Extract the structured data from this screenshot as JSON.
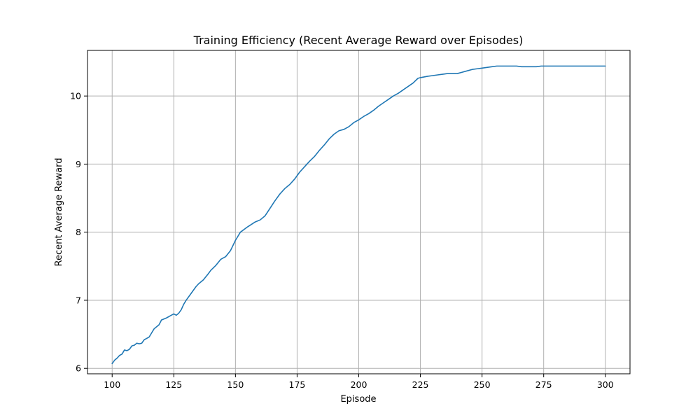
{
  "chart_data": {
    "type": "line",
    "title": "Training Efficiency (Recent Average Reward over Episodes)",
    "xlabel": "Episode",
    "ylabel": "Recent Average Reward",
    "xlim": [
      90,
      310
    ],
    "ylim": [
      5.92,
      10.67
    ],
    "x_ticks": [
      100,
      125,
      150,
      175,
      200,
      225,
      250,
      275,
      300
    ],
    "y_ticks": [
      6,
      7,
      8,
      9,
      10
    ],
    "grid": true,
    "series_color": "#1f77b4",
    "series": [
      {
        "x": [
          100,
          101,
          102,
          103,
          104,
          105,
          106,
          107,
          108,
          109,
          110,
          111,
          112,
          113,
          114,
          115,
          116,
          117,
          118,
          119,
          120,
          122,
          124,
          125,
          126,
          127,
          128,
          129,
          130,
          132,
          134,
          135,
          137,
          139,
          140,
          142,
          144,
          146,
          148,
          150,
          152,
          155,
          158,
          160,
          162,
          164,
          166,
          168,
          170,
          172,
          174,
          176,
          178,
          180,
          182,
          184,
          186,
          188,
          190,
          192,
          194,
          196,
          198,
          200,
          202,
          204,
          206,
          208,
          210,
          212,
          214,
          216,
          218,
          220,
          222,
          224,
          225,
          228,
          230,
          232,
          234,
          236,
          238,
          240,
          242,
          244,
          246,
          248,
          250,
          252,
          254,
          256,
          258,
          260,
          262,
          264,
          266,
          268,
          270,
          272,
          274,
          276,
          278,
          280,
          285,
          290,
          295,
          300
        ],
        "y": [
          6.07,
          6.12,
          6.15,
          6.19,
          6.21,
          6.27,
          6.26,
          6.28,
          6.33,
          6.34,
          6.37,
          6.36,
          6.37,
          6.42,
          6.44,
          6.46,
          6.52,
          6.58,
          6.61,
          6.64,
          6.71,
          6.74,
          6.78,
          6.8,
          6.78,
          6.81,
          6.86,
          6.94,
          7.0,
          7.1,
          7.2,
          7.24,
          7.3,
          7.39,
          7.44,
          7.51,
          7.6,
          7.64,
          7.73,
          7.88,
          8.0,
          8.08,
          8.15,
          8.18,
          8.24,
          8.35,
          8.46,
          8.56,
          8.64,
          8.7,
          8.78,
          8.88,
          8.96,
          9.04,
          9.11,
          9.2,
          9.28,
          9.37,
          9.44,
          9.49,
          9.51,
          9.55,
          9.61,
          9.65,
          9.7,
          9.74,
          9.79,
          9.85,
          9.9,
          9.95,
          10.0,
          10.04,
          10.09,
          10.14,
          10.19,
          10.26,
          10.27,
          10.29,
          10.3,
          10.31,
          10.32,
          10.33,
          10.33,
          10.33,
          10.35,
          10.37,
          10.39,
          10.4,
          10.41,
          10.42,
          10.43,
          10.44,
          10.44,
          10.44,
          10.44,
          10.44,
          10.43,
          10.43,
          10.43,
          10.43,
          10.44,
          10.44,
          10.44,
          10.44,
          10.44,
          10.44,
          10.44,
          10.44
        ]
      }
    ]
  }
}
